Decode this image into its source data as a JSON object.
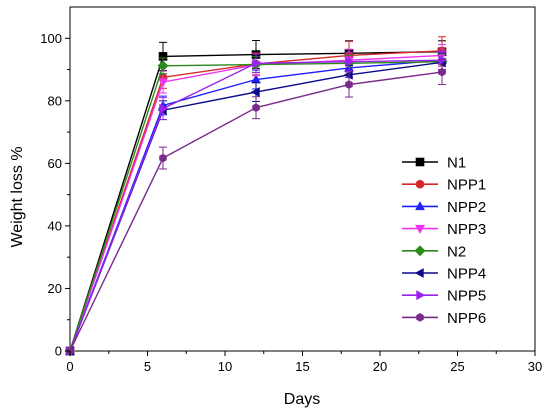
{
  "chart_data": {
    "type": "line",
    "xlabel": "Days",
    "ylabel": "Weight loss %",
    "xlim": [
      0,
      30
    ],
    "ylim": [
      0,
      110
    ],
    "xticks": [
      0,
      5,
      10,
      15,
      20,
      25,
      30
    ],
    "yticks": [
      0,
      20,
      40,
      60,
      80,
      100
    ],
    "grid": false,
    "legend": "right",
    "x": [
      0,
      6,
      12,
      18,
      24
    ],
    "series": [
      {
        "name": "N1",
        "color": "#000000",
        "marker": "square",
        "values": [
          0,
          94.2,
          94.8,
          95.2,
          95.7
        ],
        "errors": [
          0,
          4.5,
          4.5,
          4.0,
          3.5
        ]
      },
      {
        "name": "NPP1",
        "color": "#d62728",
        "marker": "circle",
        "values": [
          0,
          87.5,
          91.8,
          94.5,
          96.0
        ],
        "errors": [
          0,
          3.5,
          3.5,
          4.5,
          4.5
        ]
      },
      {
        "name": "NPP2",
        "color": "#1f1fff",
        "marker": "triangle-up",
        "values": [
          0,
          78.5,
          86.8,
          90.5,
          93.0
        ],
        "errors": [
          0,
          3.0,
          3.0,
          3.0,
          3.0
        ]
      },
      {
        "name": "NPP3",
        "color": "#ee33ee",
        "marker": "triangle-down",
        "values": [
          0,
          86.0,
          91.5,
          93.0,
          94.5
        ],
        "errors": [
          0,
          3.5,
          3.5,
          3.5,
          3.5
        ]
      },
      {
        "name": "N2",
        "color": "#2a8a1a",
        "marker": "diamond",
        "values": [
          0,
          91.2,
          91.6,
          92.0,
          92.5
        ],
        "errors": [
          0,
          2.5,
          2.5,
          2.5,
          2.5
        ]
      },
      {
        "name": "NPP4",
        "color": "#0a0a8a",
        "marker": "triangle-left",
        "values": [
          0,
          77.0,
          82.8,
          88.3,
          92.3
        ],
        "errors": [
          0,
          3.0,
          3.0,
          3.0,
          3.0
        ]
      },
      {
        "name": "NPP5",
        "color": "#9a22ee",
        "marker": "triangle-right",
        "values": [
          0,
          77.5,
          92.0,
          92.5,
          93.0
        ],
        "errors": [
          0,
          3.5,
          3.0,
          3.0,
          3.0
        ]
      },
      {
        "name": "NPP6",
        "color": "#7a2a8a",
        "marker": "hexagon",
        "values": [
          0,
          61.7,
          77.8,
          85.2,
          89.2
        ],
        "errors": [
          0,
          3.5,
          3.5,
          4.0,
          4.0
        ]
      }
    ]
  }
}
